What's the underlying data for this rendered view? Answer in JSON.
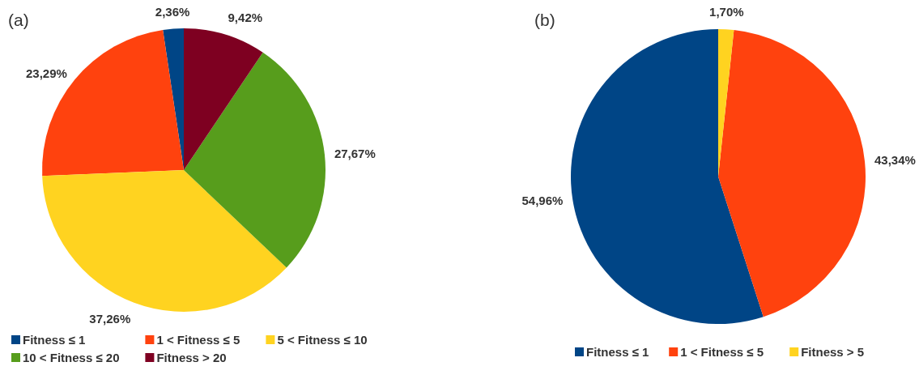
{
  "chart_data": [
    {
      "type": "pie",
      "title": "(a)",
      "categories": [
        "Fitness ≤ 1",
        "1 < Fitness ≤ 5",
        "5 < Fitness ≤ 10",
        "10 < Fitness ≤ 20",
        "Fitness > 20"
      ],
      "values": [
        2.36,
        23.29,
        37.26,
        27.67,
        9.42
      ],
      "colors": [
        "#004586",
        "#ff420e",
        "#ffd320",
        "#579d1c",
        "#7e0021"
      ],
      "value_labels": [
        "2,36%",
        "23,29%",
        "37,26%",
        "27,67%",
        "9,42%"
      ],
      "legend": "bottom"
    },
    {
      "type": "pie",
      "title": "(b)",
      "categories": [
        "Fitness ≤ 1",
        "1 < Fitness ≤ 5",
        "Fitness > 5"
      ],
      "values": [
        54.96,
        43.34,
        1.7
      ],
      "colors": [
        "#004586",
        "#ff420e",
        "#ffd320"
      ],
      "value_labels": [
        "54,96%",
        "43,34%",
        "1,70%"
      ],
      "legend": "bottom"
    }
  ]
}
